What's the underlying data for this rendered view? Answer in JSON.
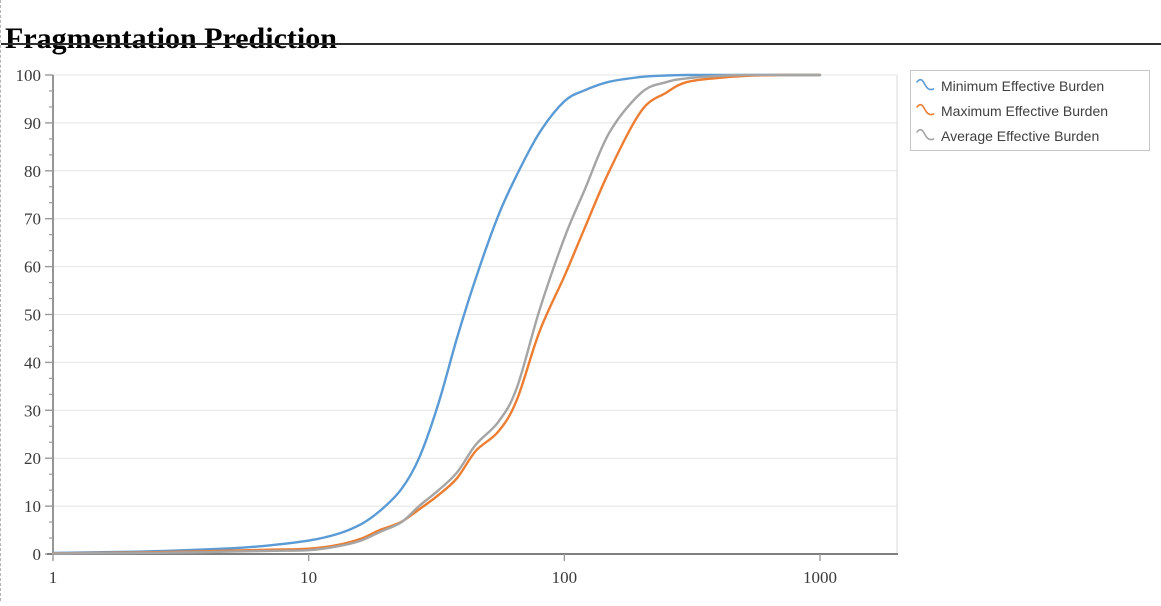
{
  "page": {
    "title": "Fragmentation Prediction"
  },
  "legend": {
    "items": [
      {
        "label": "Minimum Effective Burden",
        "color": "#5B9BD5"
      },
      {
        "label": "Maximum Effective Burden",
        "color": "#ED7D31"
      },
      {
        "label": "Average Effective Burden",
        "color": "#A5A5A5"
      }
    ]
  },
  "colors": {
    "grid_line": "#e4e4e4",
    "axis_line": "#8a8a8a",
    "x_axis_line": "#7f7f7f",
    "plot_right_border": "#d8d8d8",
    "tick": "#9a9a9a",
    "tick_label": "#3a3a3a",
    "title_rule": "#2f2f2f"
  },
  "chart_data": {
    "type": "line",
    "title": "Fragmentation Prediction",
    "xlabel": "",
    "ylabel": "",
    "x_scale": "log",
    "xlim": [
      1,
      2000
    ],
    "ylim": [
      0,
      100
    ],
    "x_ticks": [
      1,
      10,
      100,
      1000
    ],
    "y_ticks": [
      0,
      10,
      20,
      30,
      40,
      50,
      60,
      70,
      80,
      90,
      100
    ],
    "y_minor_ticks_per_interval": 2,
    "grid": "horizontal-only",
    "legend_position": "top-right",
    "x": [
      1,
      2,
      3,
      5,
      7,
      10,
      13,
      16,
      19,
      23,
      27,
      32,
      38,
      45,
      55,
      65,
      80,
      100,
      120,
      150,
      200,
      250,
      300,
      400,
      500,
      700,
      1000
    ],
    "series": [
      {
        "name": "Minimum Effective Burden",
        "color": "#5B9BD5",
        "values": [
          0.2,
          0.45,
          0.7,
          1.2,
          1.8,
          2.8,
          4.2,
          6.2,
          9.0,
          13.5,
          20,
          31,
          45,
          57.5,
          70.5,
          79,
          88,
          94.5,
          96.8,
          98.6,
          99.6,
          99.9,
          100,
          100,
          100,
          100,
          100
        ]
      },
      {
        "name": "Maximum Effective Burden",
        "color": "#ED7D31",
        "values": [
          0.15,
          0.3,
          0.45,
          0.7,
          0.9,
          1.1,
          1.9,
          3.2,
          5.0,
          6.7,
          9.3,
          12.2,
          15.8,
          21.5,
          25.5,
          32,
          46.5,
          58,
          68,
          80,
          92.5,
          96.3,
          98.5,
          99.4,
          99.8,
          100,
          100
        ]
      },
      {
        "name": "Average Effective Burden",
        "color": "#A5A5A5",
        "values": [
          0.1,
          0.2,
          0.3,
          0.5,
          0.65,
          0.8,
          1.6,
          2.8,
          4.6,
          6.6,
          10,
          13.2,
          17,
          22.8,
          27.5,
          34.5,
          51,
          66,
          76,
          88,
          96.3,
          98.5,
          99.3,
          99.8,
          100,
          100,
          100
        ]
      }
    ]
  }
}
